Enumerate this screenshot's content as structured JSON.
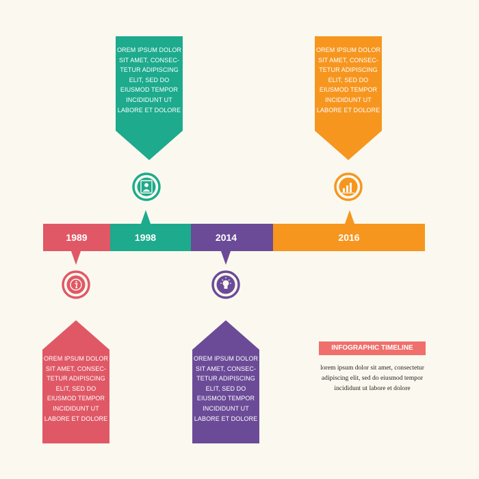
{
  "colors": {
    "background": "#fbf9ef",
    "red": "#e05866",
    "teal": "#1daa8d",
    "purple": "#6b4b97",
    "orange": "#f6961f",
    "title_badge": "#ef6f6c"
  },
  "timeline": {
    "segments": [
      {
        "year": "1989",
        "color": "red"
      },
      {
        "year": "1998",
        "color": "teal"
      },
      {
        "year": "2014",
        "color": "purple"
      },
      {
        "year": "2016",
        "color": "orange"
      }
    ]
  },
  "cards": {
    "c1998": {
      "text": "OREM IPSUM DOLOR\nSIT AMET, CONSEC-\nTETUR ADIPISCING\nELIT, SED DO\nEIUSMOD TEMPOR\nINCIDIDUNT UT\nLABORE ET DOLORE",
      "icon": "user-icon"
    },
    "c2016": {
      "text": "OREM IPSUM DOLOR\nSIT AMET, CONSEC-\nTETUR ADIPISCING\nELIT, SED DO\nEIUSMOD TEMPOR\nINCIDIDUNT UT\nLABORE ET DOLORE",
      "icon": "bar-chart-icon"
    },
    "c1989": {
      "text": "OREM IPSUM DOLOR\nSIT AMET, CONSEC-\nTETUR ADIPISCING\nELIT, SED DO\nEIUSMOD TEMPOR\nINCIDIDUNT UT\nLABORE ET DOLORE",
      "icon": "info-icon"
    },
    "c2014": {
      "text": "OREM IPSUM DOLOR\nSIT AMET, CONSEC-\nTETUR ADIPISCING\nELIT, SED DO\nEIUSMOD TEMPOR\nINCIDIDUNT UT\nLABORE ET DOLORE",
      "icon": "lightbulb-icon"
    }
  },
  "legend": {
    "title": "INFOGRAPHIC TIMELINE",
    "description": "lorem ipsum dolor sit amet, consectetur adipiscing elit, sed do eiusmod tempor incididunt ut labore et dolore"
  }
}
